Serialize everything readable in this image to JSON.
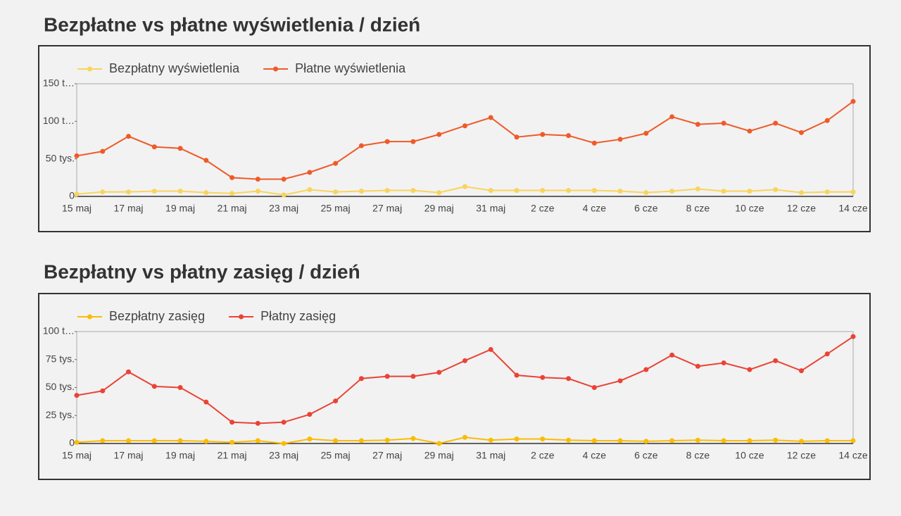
{
  "chart_data": [
    {
      "type": "line",
      "title": "Bezpłatne vs płatne wyświetlenia / dzień",
      "categories": [
        "15 maj",
        null,
        "17 maj",
        null,
        "19 maj",
        null,
        "21 maj",
        null,
        "23 maj",
        null,
        "25 maj",
        null,
        "27 maj",
        null,
        "29 maj",
        null,
        "31 maj",
        null,
        "2 cze",
        null,
        "4 cze",
        null,
        "6 cze",
        null,
        "8 cze",
        null,
        "10 cze",
        null,
        "12 cze",
        null,
        "14 cze"
      ],
      "series": [
        {
          "name": "Bezpłatny wyświetlenia",
          "color": "#f9d45c",
          "values": [
            3000,
            6000,
            6000,
            7000,
            7000,
            5000,
            4000,
            7000,
            2000,
            9000,
            6000,
            7000,
            8000,
            8000,
            5000,
            13000,
            8000,
            8000,
            8000,
            8000,
            8000,
            7000,
            5000,
            7000,
            10000,
            7000,
            7000,
            9000,
            5000,
            6000,
            6000
          ]
        },
        {
          "name": "Płatne wyświetlenia",
          "color": "#ef5a28",
          "values": [
            54000,
            60000,
            80000,
            66000,
            64000,
            48000,
            25000,
            23000,
            23000,
            32000,
            44000,
            67500,
            73000,
            73000,
            82500,
            94000,
            105000,
            79000,
            82500,
            81000,
            71000,
            76000,
            84000,
            106000,
            96000,
            97500,
            87000,
            97500,
            85000,
            101000,
            126500
          ]
        }
      ],
      "ylim": [
        0,
        150000
      ],
      "yticks": [
        0,
        {
          "value": 50000,
          "label": "50 tys."
        },
        {
          "value": 100000,
          "label": "100 t…"
        },
        {
          "value": 150000,
          "label": "150 t…"
        }
      ],
      "grid": false
    },
    {
      "type": "line",
      "title": "Bezpłatny vs płatny zasięg / dzień",
      "categories": [
        "15 maj",
        null,
        "17 maj",
        null,
        "19 maj",
        null,
        "21 maj",
        null,
        "23 maj",
        null,
        "25 maj",
        null,
        "27 maj",
        null,
        "29 maj",
        null,
        "31 maj",
        null,
        "2 cze",
        null,
        "4 cze",
        null,
        "6 cze",
        null,
        "8 cze",
        null,
        "10 cze",
        null,
        "12 cze",
        null,
        "14 cze"
      ],
      "series": [
        {
          "name": "Bezpłatny zasięg",
          "color": "#fbbc04",
          "values": [
            1000,
            2500,
            2500,
            2500,
            2500,
            2000,
            1000,
            2500,
            0,
            4000,
            2500,
            2500,
            3000,
            4500,
            0,
            5500,
            3000,
            4000,
            4000,
            3000,
            2500,
            2500,
            2000,
            2500,
            3000,
            2500,
            2500,
            3000,
            2000,
            2500,
            2500
          ]
        },
        {
          "name": "Płatny zasięg",
          "color": "#ea4335",
          "values": [
            43000,
            47000,
            64000,
            51000,
            50000,
            37000,
            19000,
            18000,
            19000,
            26000,
            38000,
            58000,
            60000,
            60000,
            63500,
            74000,
            84000,
            61000,
            59000,
            58000,
            50000,
            56000,
            66000,
            79000,
            69000,
            72000,
            66000,
            74000,
            65000,
            80000,
            95500
          ]
        }
      ],
      "ylim": [
        0,
        100000
      ],
      "yticks": [
        0,
        {
          "value": 25000,
          "label": "25 tys."
        },
        {
          "value": 50000,
          "label": "50 tys."
        },
        {
          "value": 75000,
          "label": "75 tys."
        },
        {
          "value": 100000,
          "label": "100 t…"
        }
      ],
      "grid": false
    }
  ]
}
